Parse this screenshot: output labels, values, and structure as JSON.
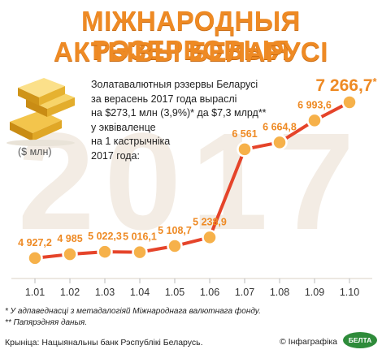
{
  "title_line1": "МІЖНАРОДНЫЯ РЭЗЕРВОВЫЯ",
  "title_line2": "АКТЫВЫ БЕЛАРУСІ",
  "intro_lines": [
    "Золатавалютныя рэзервы Беларусі",
    "за верасень 2017 года выраслі",
    "на $273,1 млн (3,9%)* да $7,3 млрд**",
    "у эквіваленце",
    "на 1 кастрычніка",
    "2017 года:"
  ],
  "unit_label": "($ млн)",
  "watermark": "2017",
  "footnote1": "* У адпаведнасці з метадалогіяй Міжнароднага валютнага фонду.",
  "footnote2": "** Папярэдняя даныя.",
  "source": "Крыніца: Нацыянальны банк Рэспублікі Беларусь.",
  "credit": "© Інфаграфіка",
  "logo_text": "БЕЛТА",
  "colors": {
    "accent": "#ee8a24",
    "line": "#e5442a",
    "marker_fill": "#f6b14a",
    "watermark": "#f3ece4"
  },
  "chart_data": {
    "type": "line",
    "categories": [
      "1.01",
      "1.02",
      "1.03",
      "1.04",
      "1.05",
      "1.06",
      "1.07",
      "1.08",
      "1.09",
      "1.10"
    ],
    "values": [
      4927.2,
      4985,
      5022.3,
      5016.1,
      5108.7,
      5238.9,
      6561,
      6664.8,
      6993.6,
      7266.7
    ],
    "value_labels": [
      "4 927,2",
      "4 985",
      "5 022,3",
      "5 016,1",
      "5 108,7",
      "5 238,9",
      "6 561",
      "6 664,8",
      "6 993,6",
      "7 266,7"
    ],
    "last_label_mark": "*",
    "ylim": [
      4780,
      7400
    ],
    "grid": false
  }
}
